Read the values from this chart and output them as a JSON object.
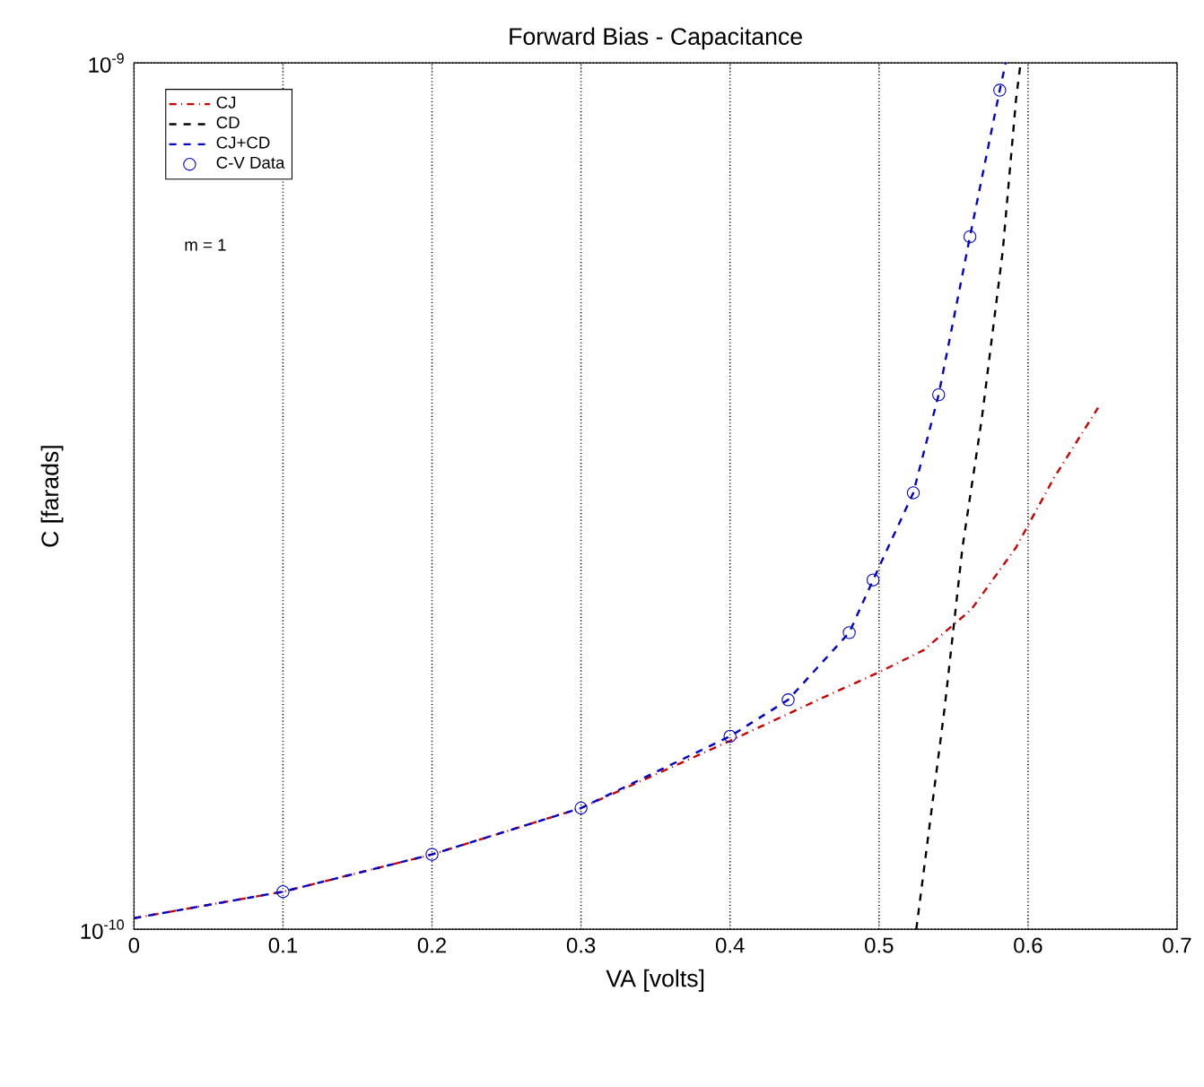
{
  "chart_data": {
    "type": "line",
    "title": "Forward Bias - Capacitance",
    "xlabel": "VA [volts]",
    "ylabel": "C [farads]",
    "xlim": [
      0,
      0.7
    ],
    "xticks": [
      0,
      0.1,
      0.2,
      0.3,
      0.4,
      0.5,
      0.6,
      0.7
    ],
    "ylim": [
      1e-10,
      1e-09
    ],
    "yticks": [
      {
        "value": 1e-10,
        "label": "10$^{-10}$"
      },
      {
        "value": 1e-09,
        "label": "10$^{-9}$"
      }
    ],
    "log": "y",
    "grid": true,
    "legend": "top left",
    "annotations": [
      "m = 1"
    ],
    "series": [
      {
        "name": "CJ",
        "line_style": "dotted",
        "color": "#cc0000",
        "x": [
          0,
          0.1,
          0.2,
          0.3,
          0.4,
          0.468,
          0.5,
          0.53,
          0.562,
          0.592,
          0.617,
          0.647
        ],
        "values": [
          1.03e-10,
          1.105e-10,
          1.22e-10,
          1.38e-10,
          1.65e-10,
          1.87e-10,
          1.98e-10,
          2.1e-10,
          2.34e-10,
          2.76e-10,
          3.31e-10,
          4e-10
        ]
      },
      {
        "name": "CD",
        "line_style": "dashed",
        "color": "#000000",
        "x": [
          0.525,
          0.544,
          0.556,
          0.569,
          0.583,
          0.592,
          0.595
        ],
        "values": [
          1e-10,
          1.8e-10,
          2.76e-10,
          3.89e-10,
          6.06e-10,
          9.1e-10,
          1e-09
        ]
      },
      {
        "name": "CJ+CD",
        "line_style": "dashed",
        "color": "#0000cc",
        "x": [
          0,
          0.1,
          0.2,
          0.3,
          0.4,
          0.439,
          0.48,
          0.496,
          0.523,
          0.54,
          0.561,
          0.581,
          0.585
        ],
        "values": [
          1.03e-10,
          1.105e-10,
          1.22e-10,
          1.38e-10,
          1.67e-10,
          1.84e-10,
          2.2e-10,
          2.53e-10,
          3.19e-10,
          4.14e-10,
          6.3e-10,
          9.3e-10,
          1e-09
        ]
      },
      {
        "name": "C-V Data",
        "type": "scatter",
        "marker": "circle",
        "color": "#0000cc",
        "x": [
          0.1,
          0.2,
          0.3,
          0.4,
          0.439,
          0.48,
          0.496,
          0.523,
          0.54,
          0.561,
          0.581
        ],
        "values": [
          1.105e-10,
          1.22e-10,
          1.38e-10,
          1.67e-10,
          1.84e-10,
          2.2e-10,
          2.53e-10,
          3.19e-10,
          4.14e-10,
          6.3e-10,
          9.3e-10
        ]
      }
    ]
  }
}
